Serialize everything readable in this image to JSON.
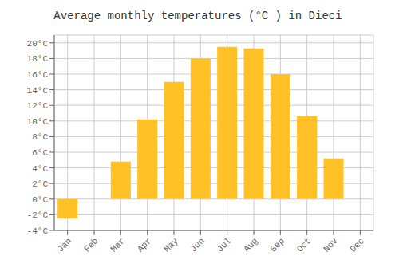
{
  "chart_data": {
    "type": "bar",
    "title": "Average monthly temperatures (°C ) in Dieci",
    "categories": [
      "Jan",
      "Feb",
      "Mar",
      "Apr",
      "May",
      "Jun",
      "Jul",
      "Aug",
      "Sep",
      "Oct",
      "Nov",
      "Dec"
    ],
    "values": [
      -2.5,
      0.0,
      4.8,
      10.2,
      15.0,
      18.0,
      19.5,
      19.3,
      16.0,
      10.6,
      5.2,
      0.0
    ],
    "color": "#FFC125",
    "ylim": [
      -4,
      21
    ],
    "yticks": [
      {
        "value": -4,
        "label": "-4°C"
      },
      {
        "value": -2,
        "label": "-2°C"
      },
      {
        "value": 0,
        "label": "0°C"
      },
      {
        "value": 2,
        "label": "2°C"
      },
      {
        "value": 4,
        "label": "4°C"
      },
      {
        "value": 6,
        "label": "6°C"
      },
      {
        "value": 8,
        "label": "8°C"
      },
      {
        "value": 10,
        "label": "10°C"
      },
      {
        "value": 12,
        "label": "12°C"
      },
      {
        "value": 14,
        "label": "14°C"
      },
      {
        "value": 16,
        "label": "16°C"
      },
      {
        "value": 18,
        "label": "18°C"
      },
      {
        "value": 20,
        "label": "20°C"
      }
    ],
    "grid": true
  }
}
